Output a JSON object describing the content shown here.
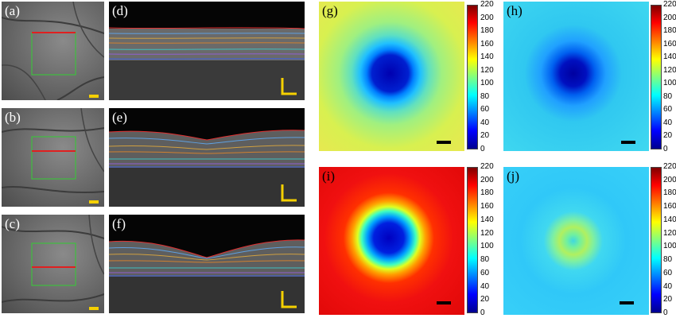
{
  "panels": {
    "a": "(a)",
    "b": "(b)",
    "c": "(c)",
    "d": "(d)",
    "e": "(e)",
    "f": "(f)",
    "g": "(g)",
    "h": "(h)",
    "i": "(i)",
    "j": "(j)"
  },
  "colorbar_ticks": [
    "220",
    "200",
    "180",
    "160",
    "140",
    "120",
    "100",
    "80",
    "60",
    "40",
    "20",
    "0"
  ],
  "colors": {
    "scan_line": "#e02020",
    "roi_box": "#3fbf3f",
    "scale_bar_fundus": "#f5d000",
    "scale_bar_map": "#000000"
  }
}
